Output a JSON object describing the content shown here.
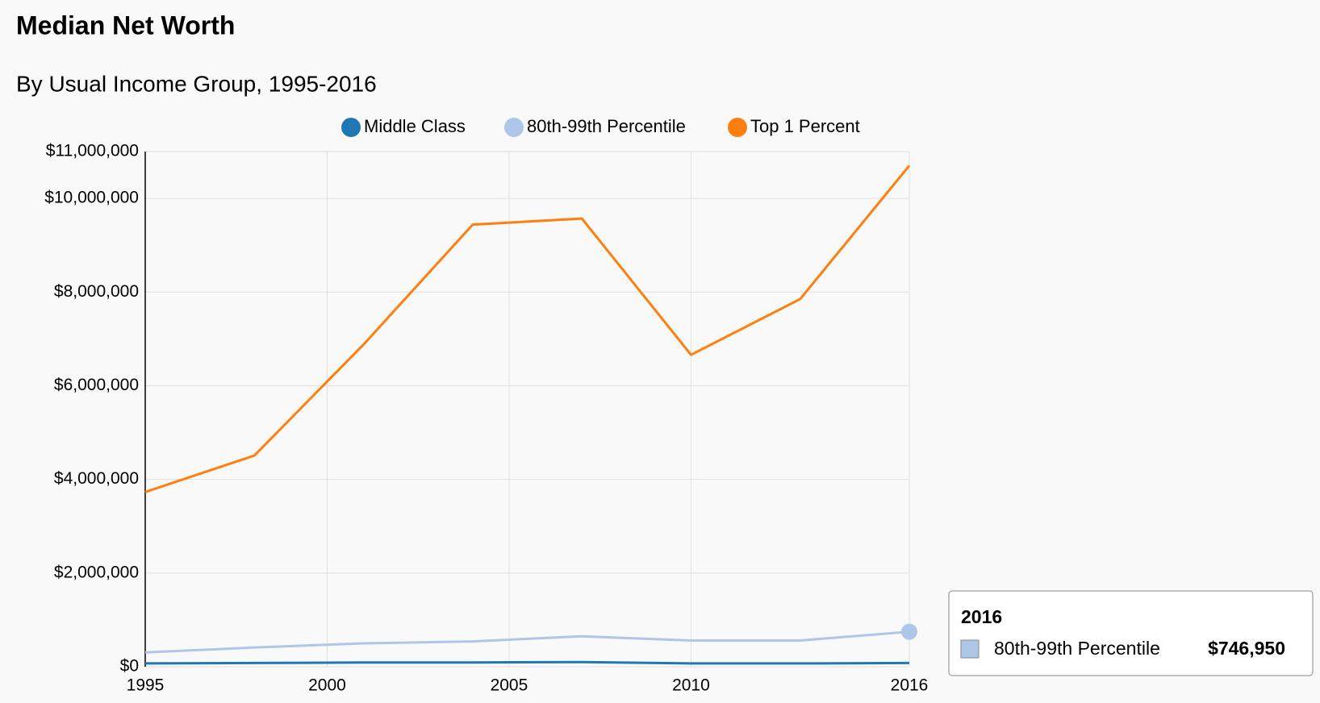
{
  "chart_data": {
    "type": "line",
    "title": "Median Net Worth",
    "subtitle": "By Usual Income Group, 1995-2016",
    "x": [
      1995,
      1998,
      2001,
      2004,
      2007,
      2010,
      2013,
      2016
    ],
    "series": [
      {
        "name": "Middle Class",
        "color": "#1f77b4",
        "values": [
          70000,
          80000,
          90000,
          90000,
          100000,
          70000,
          70000,
          80000
        ]
      },
      {
        "name": "80th-99th Percentile",
        "color": "#aec7e8",
        "values": [
          305000,
          410000,
          500000,
          540000,
          650000,
          560000,
          560000,
          746950
        ]
      },
      {
        "name": "Top 1 Percent",
        "color": "#ff7f0e",
        "values": [
          3730000,
          4510000,
          6880000,
          9440000,
          9570000,
          6660000,
          7850000,
          10700000
        ]
      }
    ],
    "xlim": [
      1995,
      2016
    ],
    "xticks": [
      1995,
      2000,
      2005,
      2010,
      2016
    ],
    "ylim": [
      0,
      11000000
    ],
    "yticks": [
      {
        "value": 0,
        "label": "$0"
      },
      {
        "value": 2000000,
        "label": "$2,000,000"
      },
      {
        "value": 4000000,
        "label": "$4,000,000"
      },
      {
        "value": 6000000,
        "label": "$6,000,000"
      },
      {
        "value": 8000000,
        "label": "$8,000,000"
      },
      {
        "value": 10000000,
        "label": "$10,000,000"
      },
      {
        "value": 11000000,
        "label": "$11,000,000"
      }
    ],
    "grid": true,
    "tooltip": {
      "x": 2016,
      "name": "80th-99th Percentile",
      "value": 746950,
      "value_label": "$746,950"
    }
  }
}
